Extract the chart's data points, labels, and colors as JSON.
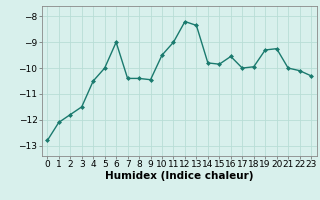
{
  "x": [
    0,
    1,
    2,
    3,
    4,
    5,
    6,
    7,
    8,
    9,
    10,
    11,
    12,
    13,
    14,
    15,
    16,
    17,
    18,
    19,
    20,
    21,
    22,
    23
  ],
  "y": [
    -12.8,
    -12.1,
    -11.8,
    -11.5,
    -10.5,
    -10.0,
    -9.0,
    -10.4,
    -10.4,
    -10.45,
    -9.5,
    -9.0,
    -8.2,
    -8.35,
    -9.8,
    -9.85,
    -9.55,
    -10.0,
    -9.95,
    -9.3,
    -9.25,
    -10.0,
    -10.1,
    -10.3
  ],
  "line_color": "#1a7a6e",
  "marker": "D",
  "marker_size": 2,
  "bg_color": "#d8f0ec",
  "grid_color": "#b8ddd6",
  "xlabel": "Humidex (Indice chaleur)",
  "xlim": [
    -0.5,
    23.5
  ],
  "ylim": [
    -13.4,
    -7.6
  ],
  "yticks": [
    -13,
    -12,
    -11,
    -10,
    -9,
    -8
  ],
  "xticks": [
    0,
    1,
    2,
    3,
    4,
    5,
    6,
    7,
    8,
    9,
    10,
    11,
    12,
    13,
    14,
    15,
    16,
    17,
    18,
    19,
    20,
    21,
    22,
    23
  ],
  "tick_fontsize": 6.5,
  "xlabel_fontsize": 7.5,
  "line_width": 1.0
}
